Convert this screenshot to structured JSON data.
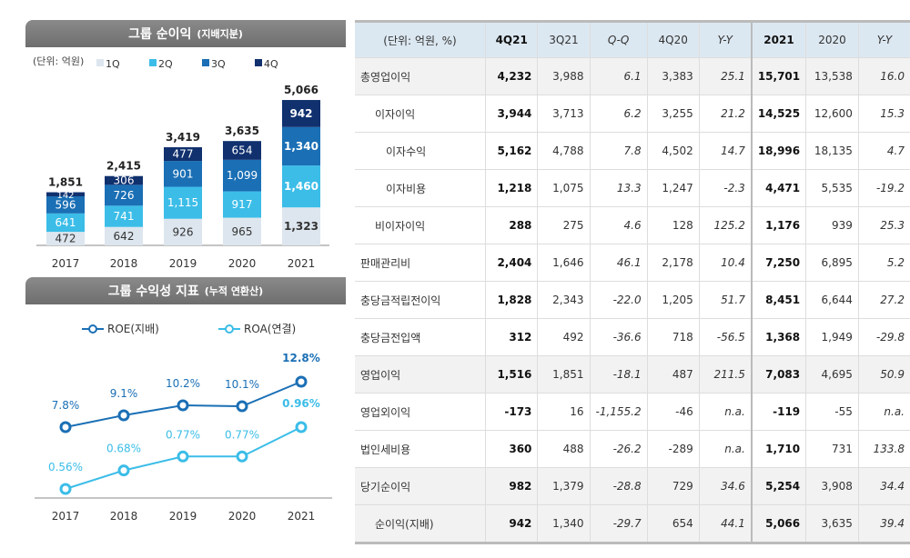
{
  "chart_data": [
    {
      "type": "bar",
      "stacked": true,
      "title": "그룹 순이익",
      "title_sub": "(지배지분)",
      "unit_label": "(단위: 억원)",
      "categories": [
        "2017",
        "2018",
        "2019",
        "2020",
        "2021"
      ],
      "series": [
        {
          "name": "1Q",
          "values": [
            472,
            642,
            926,
            965,
            1323
          ],
          "color": "#dde6ee"
        },
        {
          "name": "2Q",
          "values": [
            641,
            741,
            1115,
            917,
            1460
          ],
          "color": "#3bbde8"
        },
        {
          "name": "3Q",
          "values": [
            596,
            726,
            901,
            1099,
            1340
          ],
          "color": "#1a6fb5"
        },
        {
          "name": "4Q",
          "values": [
            142,
            306,
            477,
            654,
            942
          ],
          "color": "#10306e"
        }
      ],
      "totals": [
        "1,851",
        "2,415",
        "3,419",
        "3,635",
        "5,066"
      ],
      "value_labels": [
        [
          "472",
          "642",
          "926",
          "965",
          "1,323"
        ],
        [
          "641",
          "741",
          "1,115",
          "917",
          "1,460"
        ],
        [
          "596",
          "726",
          "901",
          "1,099",
          "1,340"
        ],
        [
          "142",
          "306",
          "477",
          "654",
          "942"
        ]
      ]
    },
    {
      "type": "line",
      "title": "그룹 수익성 지표",
      "title_sub": "(누적 연환산)",
      "categories": [
        "2017",
        "2018",
        "2019",
        "2020",
        "2021"
      ],
      "series": [
        {
          "name": "ROE(지배)",
          "values": [
            7.8,
            9.1,
            10.2,
            10.1,
            12.8
          ],
          "labels": [
            "7.8%",
            "9.1%",
            "10.2%",
            "10.1%",
            "12.8%"
          ],
          "color": "#1a6fb5"
        },
        {
          "name": "ROA(연결)",
          "values": [
            0.56,
            0.68,
            0.77,
            0.77,
            0.96
          ],
          "labels": [
            "0.56%",
            "0.68%",
            "0.77%",
            "0.77%",
            "0.96%"
          ],
          "color": "#3bbde8"
        }
      ]
    }
  ],
  "table": {
    "headers": [
      "(단위: 억원, %)",
      "4Q21",
      "3Q21",
      "Q-Q",
      "4Q20",
      "Y-Y",
      "2021",
      "2020",
      "Y-Y"
    ],
    "rows": [
      [
        "총영업이익",
        "4,232",
        "3,988",
        "6.1",
        "3,383",
        "25.1",
        "15,701",
        "13,538",
        "16.0"
      ],
      [
        "이자이익",
        "3,944",
        "3,713",
        "6.2",
        "3,255",
        "21.2",
        "14,525",
        "12,600",
        "15.3"
      ],
      [
        "이자수익",
        "5,162",
        "4,788",
        "7.8",
        "4,502",
        "14.7",
        "18,996",
        "18,135",
        "4.7"
      ],
      [
        "이자비용",
        "1,218",
        "1,075",
        "13.3",
        "1,247",
        "-2.3",
        "4,471",
        "5,535",
        "-19.2"
      ],
      [
        "비이자이익",
        "288",
        "275",
        "4.6",
        "128",
        "125.2",
        "1,176",
        "939",
        "25.3"
      ],
      [
        "판매관리비",
        "2,404",
        "1,646",
        "46.1",
        "2,178",
        "10.4",
        "7,250",
        "6,895",
        "5.2"
      ],
      [
        "충당금적립전이익",
        "1,828",
        "2,343",
        "-22.0",
        "1,205",
        "51.7",
        "8,451",
        "6,644",
        "27.2"
      ],
      [
        "충당금전입액",
        "312",
        "492",
        "-36.6",
        "718",
        "-56.5",
        "1,368",
        "1,949",
        "-29.8"
      ],
      [
        "영업이익",
        "1,516",
        "1,851",
        "-18.1",
        "487",
        "211.5",
        "7,083",
        "4,695",
        "50.9"
      ],
      [
        "영업외이익",
        "-173",
        "16",
        "-1,155.2",
        "-46",
        "n.a.",
        "-119",
        "-55",
        "n.a."
      ],
      [
        "법인세비용",
        "360",
        "488",
        "-26.2",
        "-289",
        "n.a.",
        "1,710",
        "731",
        "133.8"
      ],
      [
        "당기순이익",
        "982",
        "1,379",
        "-28.8",
        "729",
        "34.6",
        "5,254",
        "3,908",
        "34.4"
      ],
      [
        "순이익(지배)",
        "942",
        "1,340",
        "-29.7",
        "654",
        "44.1",
        "5,066",
        "3,635",
        "39.4"
      ]
    ],
    "shaded_rows": [
      0,
      8,
      11,
      12
    ],
    "indent": [
      0,
      1,
      2,
      2,
      1,
      0,
      0,
      0,
      0,
      0,
      0,
      0,
      1
    ]
  }
}
